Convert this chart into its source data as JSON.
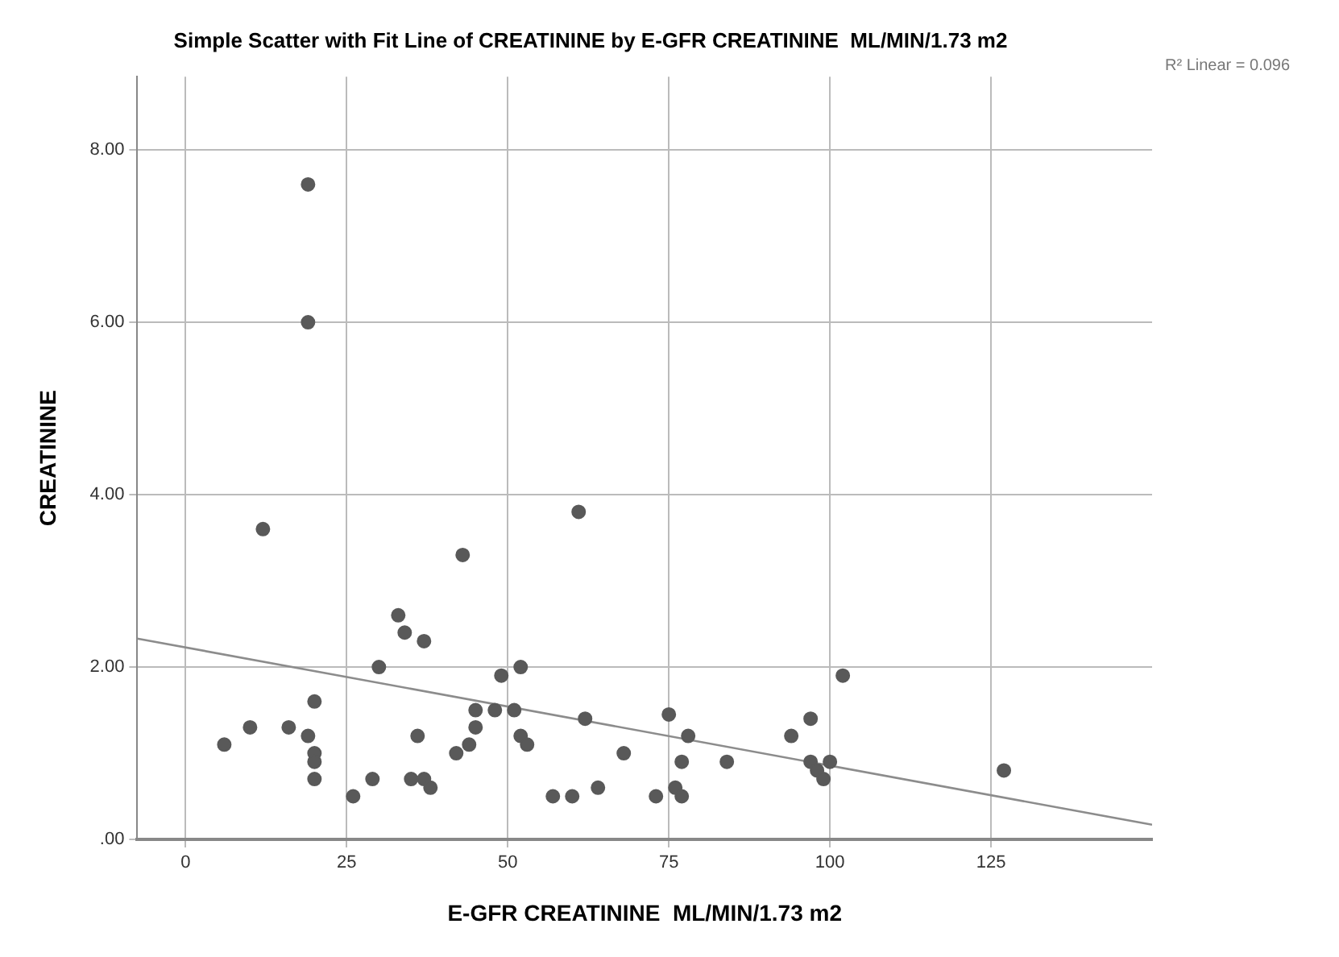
{
  "chart_data": {
    "type": "scatter",
    "title": "Simple Scatter with Fit Line of CREATININE by E-GFR CREATININE  ML/MIN/1.73 m2",
    "xlabel": "E-GFR CREATININE  ML/MIN/1.73 m2",
    "ylabel": "CREATININE",
    "annotations": [
      "R² Linear = 0.096"
    ],
    "series": [
      {
        "color": "#595959",
        "marker": "circle",
        "x": [
          12,
          43,
          33,
          34,
          37,
          30,
          49,
          20,
          45,
          48,
          10,
          16,
          45,
          19,
          36,
          44,
          6,
          42,
          20,
          20,
          20,
          29,
          35,
          37,
          38,
          26,
          52,
          51,
          52,
          53,
          62,
          68,
          57,
          60,
          64,
          75,
          78,
          77,
          84,
          73,
          76,
          77,
          94,
          97,
          97,
          100,
          98,
          99,
          102,
          127,
          19,
          19,
          61
        ],
        "values": [
          3.6,
          3.3,
          2.6,
          2.4,
          2.3,
          2.0,
          1.9,
          1.6,
          1.5,
          1.5,
          1.3,
          1.3,
          1.3,
          1.2,
          1.2,
          1.1,
          1.1,
          1.0,
          1.0,
          0.9,
          0.7,
          0.7,
          0.7,
          0.7,
          0.6,
          0.5,
          2.0,
          1.5,
          1.2,
          1.1,
          1.4,
          1.0,
          0.5,
          0.5,
          0.6,
          1.45,
          1.2,
          0.9,
          0.9,
          0.5,
          0.6,
          0.5,
          1.2,
          1.4,
          0.9,
          0.9,
          0.8,
          0.7,
          1.9,
          0.8,
          7.6,
          6.0,
          3.8
        ]
      },
      {
        "type": "line",
        "color": "#8c8c8c",
        "marker": "none",
        "line_style": "solid",
        "x": [
          -7.5,
          150
        ],
        "values": [
          2.33,
          0.17
        ]
      }
    ],
    "xlim": [
      -7.5,
      150
    ],
    "xticks": [
      0,
      25,
      50,
      75,
      100,
      125
    ],
    "ylim": [
      0,
      8.85
    ],
    "yticks": [
      {
        "value": 0,
        "label": ".00"
      },
      {
        "value": 2,
        "label": "2.00"
      },
      {
        "value": 4,
        "label": "4.00"
      },
      {
        "value": 6,
        "label": "6.00"
      },
      {
        "value": 8,
        "label": "8.00"
      }
    ],
    "grid": true,
    "legend": false
  }
}
